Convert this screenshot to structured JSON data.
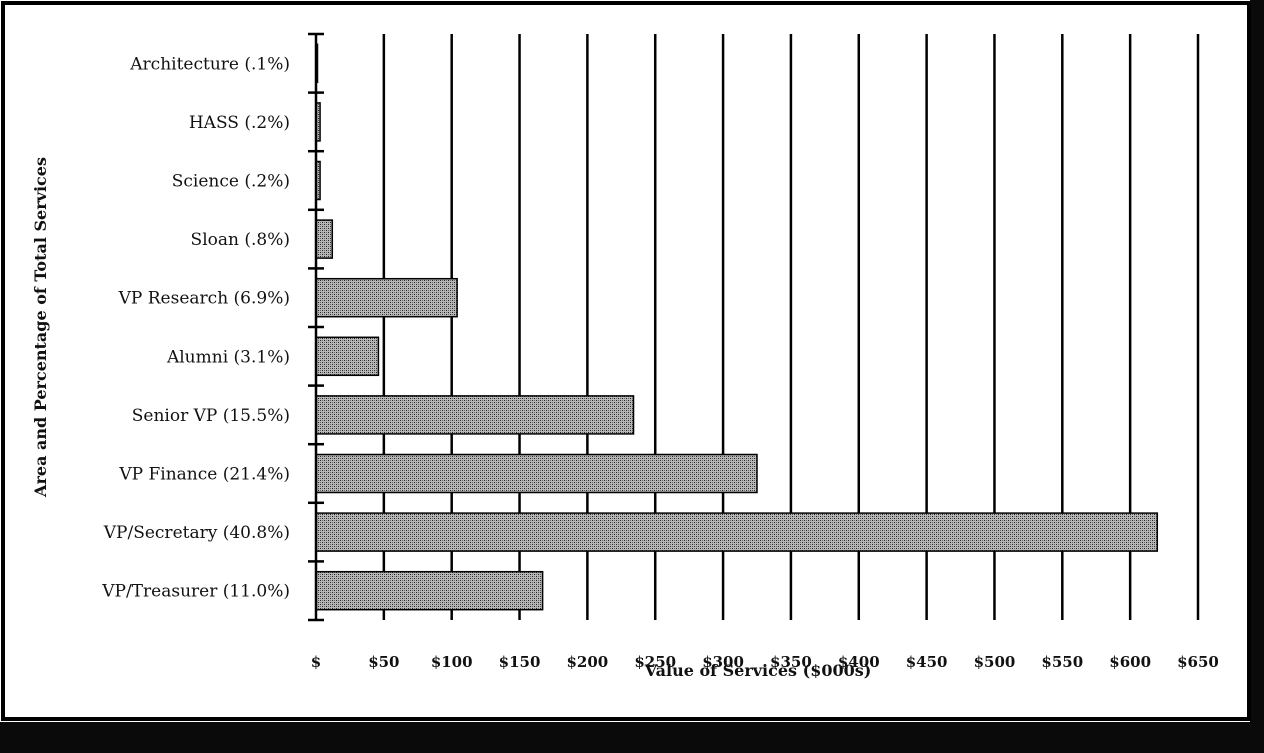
{
  "chart_data": {
    "type": "bar",
    "orientation": "horizontal",
    "title": "",
    "xlabel": "Value of Services ($000s)",
    "ylabel": "Area and Percentage of Total Services",
    "categories": [
      "Architecture (.1%)",
      "HASS (.2%)",
      "Science (.2%)",
      "Sloan (.8%)",
      "VP Research (6.9%)",
      "Alumni (3.1%)",
      "Senior VP (15.5%)",
      "VP Finance (21.4%)",
      "VP/Secretary (40.8%)",
      "VP/Treasurer (11.0%)"
    ],
    "values": [
      1,
      3,
      3,
      12,
      104,
      46,
      234,
      325,
      620,
      167
    ],
    "xlim": [
      0,
      650
    ],
    "xticks": [
      0,
      50,
      100,
      150,
      200,
      250,
      300,
      350,
      400,
      450,
      500,
      550,
      600,
      650
    ],
    "xtick_labels": [
      "$",
      "$50",
      "$100",
      "$150",
      "$200",
      "$250",
      "$300",
      "$350",
      "$400",
      "$450",
      "$500",
      "$550",
      "$600",
      "$650"
    ],
    "grid": "vertical",
    "legend": "none",
    "bar_fill": "stippled gray",
    "colors": {
      "bar": "#7a7a7a",
      "frame": "#000000",
      "background": "#ffffff"
    }
  }
}
